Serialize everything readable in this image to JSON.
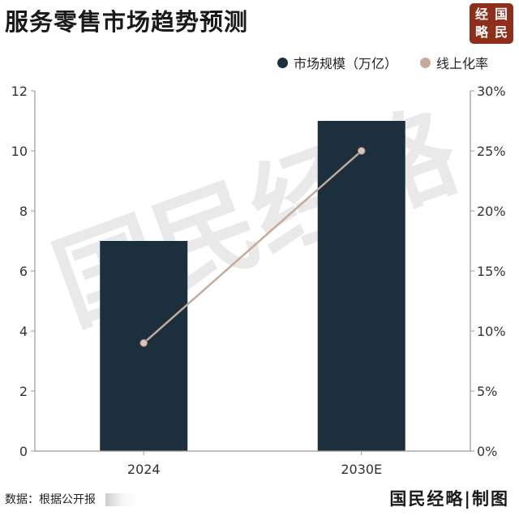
{
  "title": "服务零售市场趋势预测",
  "seal": {
    "chars": [
      "经",
      "国",
      "略",
      "民"
    ]
  },
  "watermark": "国民经略",
  "source": "数据：根据公开报",
  "brand": "国民经略|制图",
  "colors": {
    "bar": "#1c2f3d",
    "line": "#c5aa9a",
    "marker_fill": "#ddc3bb",
    "marker_stroke": "#7a6a62",
    "seal": "#8e2e1b"
  },
  "chart_data": {
    "type": "bar+line",
    "categories": [
      "2024",
      "2030E"
    ],
    "series": [
      {
        "name": "市场规模（万亿）",
        "type": "bar",
        "axis": "left",
        "values": [
          7,
          11
        ]
      },
      {
        "name": "线上化率",
        "type": "line",
        "axis": "right",
        "values": [
          9,
          25
        ]
      }
    ],
    "y_left": {
      "min": 0,
      "max": 12,
      "ticks": [
        "0",
        "2",
        "4",
        "6",
        "8",
        "10",
        "12"
      ]
    },
    "y_right": {
      "min": 0,
      "max": 30,
      "ticks": [
        "0%",
        "5%",
        "10%",
        "15%",
        "20%",
        "25%",
        "30%"
      ]
    },
    "legend_position": "top-right",
    "grid": false
  }
}
